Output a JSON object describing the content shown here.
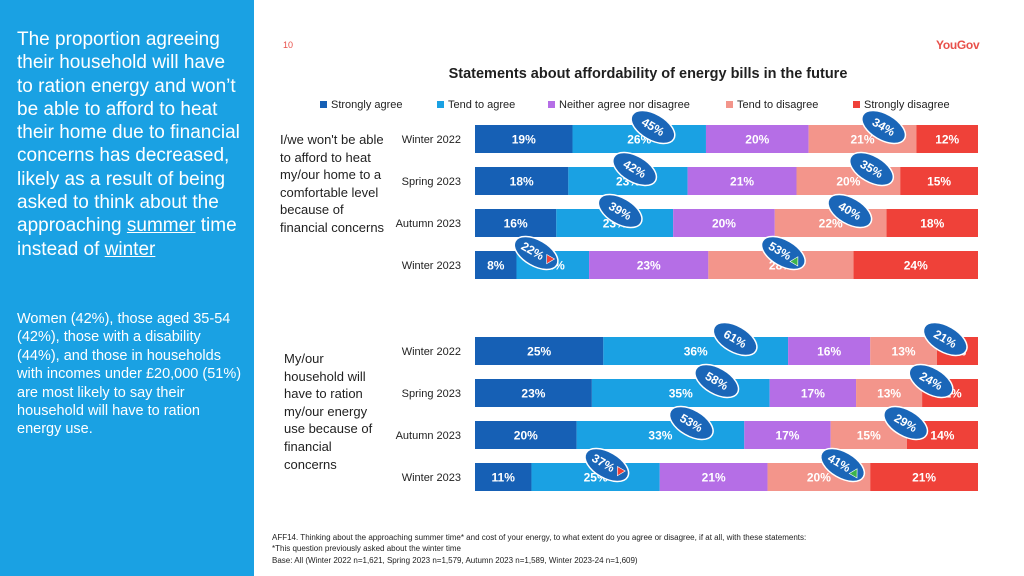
{
  "sidebar": {
    "heading_parts": [
      "The proportion agreeing their household will have to ration energy and won’t be able to afford to heat their home due to financial concerns has decreased, likely as a result of being asked to think about the approaching ",
      "summer",
      " time instead of ",
      "winter"
    ],
    "body": "Women (42%), those aged 35-54 (42%), those with a disability (44%), and those in households with incomes under £20,000 (51%) are most likely to say their household will have to ration energy use.",
    "background": "#1aa1e3"
  },
  "page_number": "10",
  "logo": "YouGov",
  "footnote": [
    "AFF14. Thinking about the approaching summer time* and cost of your energy, to what extent do you agree or disagree, if at all, with these statements:",
    "*This question previously asked about the winter time",
    "Base: All (Winter 2022 n=1,621, Spring 2023 n=1,579, Autumn 2023 n=1,589, Winter 2023-24 n=1,609)"
  ],
  "chart_data": {
    "type": "bar",
    "orientation": "horizontal",
    "stacked": true,
    "title": "Statements about affordability of energy bills in the future",
    "categories": [
      "Strongly agree",
      "Tend to agree",
      "Neither agree nor disagree",
      "Tend to disagree",
      "Strongly disagree"
    ],
    "colors": [
      "#1660b5",
      "#1aa1e3",
      "#b56ee6",
      "#f3958b",
      "#ef4139"
    ],
    "legend_position": "top",
    "groups": [
      {
        "statement": "I/we won't be able to afford to heat my/our home to a comfortable level because of financial concerns",
        "rows": [
          {
            "period": "Winter 2022",
            "values": [
              19,
              26,
              20,
              21,
              12
            ],
            "net_agree": "45%",
            "net_disagree": "34%",
            "agree_change": "",
            "disagree_change": ""
          },
          {
            "period": "Spring 2023",
            "values": [
              18,
              23,
              21,
              20,
              15
            ],
            "net_agree": "42%",
            "net_disagree": "35%",
            "agree_change": "",
            "disagree_change": ""
          },
          {
            "period": "Autumn 2023",
            "values": [
              16,
              23,
              20,
              22,
              18
            ],
            "net_agree": "39%",
            "net_disagree": "40%",
            "agree_change": "",
            "disagree_change": ""
          },
          {
            "period": "Winter 2023",
            "values": [
              8,
              14,
              23,
              28,
              24
            ],
            "net_agree": "22%",
            "net_disagree": "53%",
            "agree_change": "down",
            "disagree_change": "up"
          }
        ]
      },
      {
        "statement": "My/our household will have to ration my/our energy use because of financial concerns",
        "rows": [
          {
            "period": "Winter 2022",
            "values": [
              25,
              36,
              16,
              13,
              8
            ],
            "net_agree": "61%",
            "net_disagree": "21%",
            "agree_change": "",
            "disagree_change": ""
          },
          {
            "period": "Spring 2023",
            "values": [
              23,
              35,
              17,
              13,
              11
            ],
            "net_agree": "58%",
            "net_disagree": "24%",
            "agree_change": "",
            "disagree_change": ""
          },
          {
            "period": "Autumn 2023",
            "values": [
              20,
              33,
              17,
              15,
              14
            ],
            "net_agree": "53%",
            "net_disagree": "29%",
            "agree_change": "",
            "disagree_change": ""
          },
          {
            "period": "Winter 2023",
            "values": [
              11,
              25,
              21,
              20,
              21
            ],
            "net_agree": "37%",
            "net_disagree": "41%",
            "agree_change": "down",
            "disagree_change": "up"
          }
        ]
      }
    ]
  }
}
